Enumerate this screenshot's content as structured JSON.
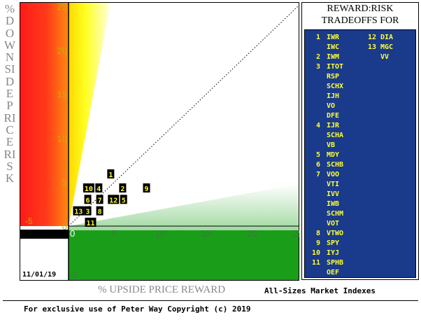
{
  "chart_data": {
    "type": "scatter",
    "title": "REWARD:RISK TRADEOFFS FOR",
    "xlabel": "% UPSIDE PRICE REWARD",
    "xlabel_suffix": "All-Sizes Market Indexes",
    "ylabel": "%DOWNSIDE PRICE RISK",
    "xlim": [
      -5,
      25
    ],
    "ylim": [
      -5,
      25
    ],
    "x_ticks": [
      "0",
      "5",
      "10",
      "15",
      "20",
      "25"
    ],
    "x_tick_values": [
      0,
      5,
      10,
      15,
      20,
      25
    ],
    "y_ticks": [
      "0",
      "5",
      "10",
      "15",
      "20",
      "25"
    ],
    "y_tick_values": [
      0,
      5,
      10,
      15,
      20,
      25
    ],
    "neg_tick_label": "-5",
    "diagonal": true,
    "grid": false,
    "points": [
      {
        "label": "1",
        "x": 4.6,
        "y": 5.9
      },
      {
        "label": "2",
        "x": 5.9,
        "y": 4.3
      },
      {
        "label": "4",
        "x": 3.3,
        "y": 4.3
      },
      {
        "label": "10",
        "x": 2.2,
        "y": 4.3
      },
      {
        "label": "9",
        "x": 8.5,
        "y": 4.3
      },
      {
        "label": "6",
        "x": 2.1,
        "y": 3.0
      },
      {
        "label": "7",
        "x": 3.4,
        "y": 3.0
      },
      {
        "label": "12",
        "x": 4.9,
        "y": 3.0
      },
      {
        "label": "5",
        "x": 6.0,
        "y": 3.0
      },
      {
        "label": "13",
        "x": 1.1,
        "y": 1.7
      },
      {
        "label": "3",
        "x": 2.1,
        "y": 1.7
      },
      {
        "label": "8",
        "x": 3.4,
        "y": 1.7
      },
      {
        "label": "11",
        "x": 2.4,
        "y": 0.4
      }
    ]
  },
  "date": "11/01/19",
  "footer": "For exclusive use of Peter Way Copyright (c) 2019",
  "panel": {
    "title_line1": "REWARD:RISK",
    "title_line2": "TRADEOFFS FOR",
    "entries": [
      {
        "num": "1",
        "ticker": "IWR"
      },
      {
        "num": "",
        "ticker": "IWC"
      },
      {
        "num": "2",
        "ticker": "IWM"
      },
      {
        "num": "3",
        "ticker": "ITOT"
      },
      {
        "num": "",
        "ticker": "RSP"
      },
      {
        "num": "",
        "ticker": "SCHX"
      },
      {
        "num": "",
        "ticker": "IJH"
      },
      {
        "num": "",
        "ticker": "VO"
      },
      {
        "num": "",
        "ticker": "DFE"
      },
      {
        "num": "4",
        "ticker": "IJR"
      },
      {
        "num": "",
        "ticker": "SCHA"
      },
      {
        "num": "",
        "ticker": "VB"
      },
      {
        "num": "5",
        "ticker": "MDY"
      },
      {
        "num": "6",
        "ticker": "SCHB"
      },
      {
        "num": "7",
        "ticker": "VOO"
      },
      {
        "num": "",
        "ticker": "VTI"
      },
      {
        "num": "",
        "ticker": "IVV"
      },
      {
        "num": "",
        "ticker": "IWB"
      },
      {
        "num": "",
        "ticker": "SCHM"
      },
      {
        "num": "",
        "ticker": "VOT"
      },
      {
        "num": "8",
        "ticker": "VTWO"
      },
      {
        "num": "9",
        "ticker": "SPY"
      },
      {
        "num": "10",
        "ticker": "IYJ"
      },
      {
        "num": "11",
        "ticker": "SPHB"
      },
      {
        "num": "",
        "ticker": "OEF"
      }
    ],
    "entries_col2": [
      {
        "num": "12",
        "ticker": "DIA"
      },
      {
        "num": "13",
        "ticker": "MGC"
      },
      {
        "num": "",
        "ticker": "VV"
      }
    ]
  },
  "colors": {
    "red": "#ff2020",
    "yellow": "#ffff00",
    "green": "#1a9e1a",
    "panel_blue": "#1a3a8c",
    "label_yellow": "#ffff33"
  }
}
